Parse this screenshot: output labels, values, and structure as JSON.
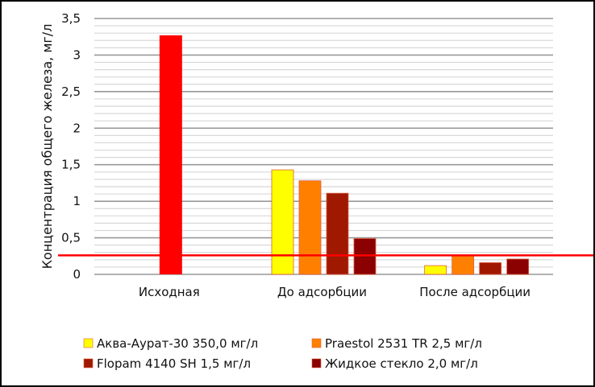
{
  "chart_data": {
    "type": "bar",
    "title": "",
    "xlabel": "",
    "ylabel": "Концентрация  общего железа, мг/л",
    "ylim": [
      0,
      3.5
    ],
    "yticks": [
      "0",
      "0,5",
      "1",
      "1,5",
      "2",
      "2,5",
      "3",
      "3,5"
    ],
    "ytick_values": [
      0,
      0.5,
      1,
      1.5,
      2,
      2.5,
      3,
      3.5
    ],
    "minor_grid_step": 0.1,
    "grid": true,
    "legend_position": "bottom",
    "categories": [
      "Исходная",
      "До адсорбции",
      "После адсорбции"
    ],
    "initial_series": {
      "color": "#FF0000",
      "values": [
        3.27,
        null,
        null
      ]
    },
    "series": [
      {
        "name": "Аква-Аурат-30 350,0 мг/л",
        "color": "#FFFF00",
        "values": [
          null,
          1.43,
          0.12
        ]
      },
      {
        "name": "Praestol 2531 TR 2,5 мг/л",
        "color": "#FF8000",
        "values": [
          null,
          1.28,
          0.26
        ]
      },
      {
        "name": "Flopam 4140 SH  1,5 мг/л",
        "color": "#A01800",
        "values": [
          null,
          1.11,
          0.16
        ]
      },
      {
        "name": "Жидкое  стекло 2,0 мг/л",
        "color": "#8B0000",
        "values": [
          null,
          0.49,
          0.21
        ]
      }
    ],
    "reference_line": {
      "value": 0.26,
      "color": "#FF0000"
    }
  }
}
